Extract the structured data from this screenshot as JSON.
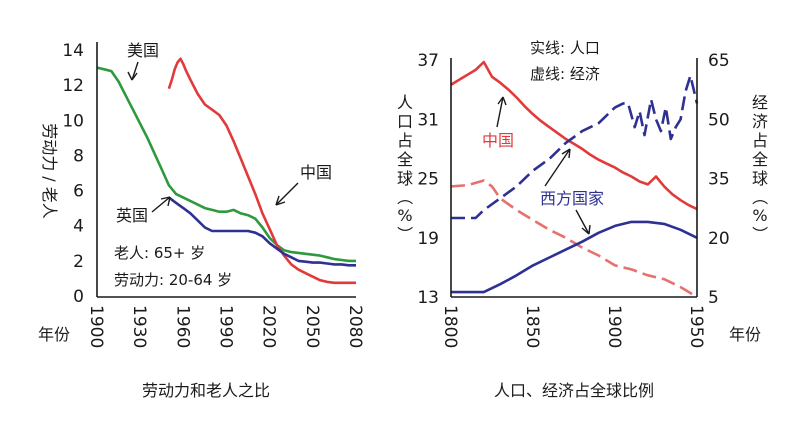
{
  "chart_data": [
    {
      "type": "line",
      "caption": "劳动力和老人之比",
      "xlabel": "年份",
      "ylabel": "劳动力 / 老人",
      "xlim": [
        1900,
        2080
      ],
      "ylim": [
        0,
        14
      ],
      "xticks": [
        "1900",
        "1930",
        "1960",
        "1990",
        "2020",
        "2050",
        "2080"
      ],
      "yticks": [
        "0",
        "2",
        "4",
        "6",
        "8",
        "10",
        "12",
        "14"
      ],
      "notes": [
        "老人: 65+ 岁",
        "劳动力: 20-64 岁"
      ],
      "series": [
        {
          "name": "美国",
          "color": "#2e9a3e",
          "x": [
            1900,
            1905,
            1910,
            1915,
            1920,
            1925,
            1930,
            1935,
            1940,
            1945,
            1950,
            1955,
            1960,
            1965,
            1970,
            1975,
            1980,
            1985,
            1990,
            1995,
            2000,
            2005,
            2010,
            2015,
            2020,
            2025,
            2030,
            2035,
            2040,
            2045,
            2050,
            2055,
            2060,
            2065,
            2070,
            2075,
            2080
          ],
          "values": [
            13.0,
            12.9,
            12.8,
            12.2,
            11.4,
            10.6,
            9.8,
            9.0,
            8.1,
            7.2,
            6.3,
            5.8,
            5.6,
            5.4,
            5.2,
            5.0,
            4.9,
            4.8,
            4.8,
            4.9,
            4.7,
            4.6,
            4.4,
            3.9,
            3.3,
            2.9,
            2.6,
            2.5,
            2.45,
            2.4,
            2.35,
            2.3,
            2.2,
            2.1,
            2.05,
            2.0,
            2.0
          ]
        },
        {
          "name": "中国",
          "color": "#e23a3a",
          "x": [
            1950,
            1952,
            1954,
            1956,
            1958,
            1960,
            1962,
            1965,
            1970,
            1975,
            1980,
            1985,
            1990,
            1995,
            2000,
            2005,
            2010,
            2015,
            2020,
            2025,
            2030,
            2035,
            2040,
            2045,
            2050,
            2055,
            2060,
            2065,
            2070,
            2075,
            2080
          ],
          "values": [
            11.8,
            12.3,
            12.9,
            13.3,
            13.5,
            13.2,
            12.8,
            12.3,
            11.5,
            10.9,
            10.6,
            10.3,
            9.7,
            8.8,
            7.8,
            6.8,
            5.8,
            4.7,
            3.8,
            2.9,
            2.3,
            1.8,
            1.5,
            1.3,
            1.1,
            0.9,
            0.8,
            0.75,
            0.75,
            0.75,
            0.75
          ]
        },
        {
          "name": "英国",
          "color": "#2e3192",
          "x": [
            1950,
            1955,
            1960,
            1965,
            1970,
            1975,
            1980,
            1985,
            1990,
            1995,
            2000,
            2005,
            2010,
            2015,
            2020,
            2025,
            2030,
            2035,
            2040,
            2045,
            2050,
            2055,
            2060,
            2065,
            2070,
            2075,
            2080
          ],
          "values": [
            5.6,
            5.3,
            5.0,
            4.7,
            4.3,
            3.9,
            3.7,
            3.7,
            3.7,
            3.7,
            3.7,
            3.7,
            3.6,
            3.4,
            3.0,
            2.7,
            2.4,
            2.2,
            2.0,
            1.95,
            1.9,
            1.9,
            1.85,
            1.8,
            1.8,
            1.75,
            1.75
          ]
        }
      ],
      "labels": {
        "usa": "美国",
        "china": "中国",
        "uk": "英国"
      }
    },
    {
      "type": "line",
      "caption": "人口、经济占全球比例",
      "xlabel": "年份",
      "ylabel_left": "人口占全球（%）",
      "ylabel_right": "经济占全球（%）",
      "xlim": [
        1800,
        1950
      ],
      "ylim_left": [
        13,
        37
      ],
      "ylim_right": [
        5,
        65
      ],
      "xticks": [
        "1800",
        "1850",
        "1900",
        "1950"
      ],
      "yticks_left": [
        "13",
        "19",
        "25",
        "31",
        "37"
      ],
      "yticks_right": [
        "5",
        "20",
        "35",
        "50",
        "65"
      ],
      "legend": [
        "实线: 人口",
        "虚线: 经济"
      ],
      "series": [
        {
          "name": "中国",
          "metric": "人口",
          "axis": "left",
          "style": "solid",
          "color": "#e23a3a",
          "x": [
            1800,
            1805,
            1810,
            1815,
            1820,
            1825,
            1830,
            1835,
            1840,
            1845,
            1850,
            1855,
            1860,
            1865,
            1870,
            1875,
            1880,
            1885,
            1890,
            1895,
            1900,
            1905,
            1910,
            1915,
            1920,
            1925,
            1930,
            1935,
            1940,
            1945,
            1950
          ],
          "values": [
            34.5,
            35.0,
            35.5,
            36.0,
            36.8,
            35.3,
            34.7,
            34.0,
            33.2,
            32.3,
            31.5,
            30.8,
            30.2,
            29.6,
            29.0,
            28.5,
            28.0,
            27.4,
            26.9,
            26.5,
            26.1,
            25.6,
            25.2,
            24.7,
            24.4,
            25.2,
            24.2,
            23.4,
            22.8,
            22.3,
            21.9
          ]
        },
        {
          "name": "中国",
          "metric": "经济",
          "axis": "right",
          "style": "dashed",
          "color": "#e8706e",
          "x": [
            1800,
            1810,
            1820,
            1825,
            1830,
            1840,
            1850,
            1860,
            1870,
            1880,
            1890,
            1900,
            1910,
            1920,
            1930,
            1940,
            1950
          ],
          "values": [
            33.0,
            33.3,
            34.5,
            33.0,
            30.0,
            27.0,
            24.5,
            22.0,
            20.0,
            17.5,
            15.5,
            13.0,
            12.0,
            10.5,
            9.5,
            7.5,
            5.0
          ]
        },
        {
          "name": "西方国家",
          "metric": "人口",
          "axis": "left",
          "style": "solid",
          "color": "#2e3192",
          "x": [
            1800,
            1810,
            1820,
            1830,
            1840,
            1850,
            1860,
            1870,
            1880,
            1890,
            1900,
            1910,
            1920,
            1930,
            1940,
            1950
          ],
          "values": [
            13.5,
            13.5,
            13.5,
            14.3,
            15.2,
            16.2,
            17.0,
            17.8,
            18.6,
            19.5,
            20.2,
            20.6,
            20.6,
            20.4,
            19.8,
            19.0
          ]
        },
        {
          "name": "西方国家",
          "metric": "经济",
          "axis": "right",
          "style": "dashed",
          "color": "#2e3192",
          "x": [
            1800,
            1805,
            1810,
            1815,
            1820,
            1830,
            1840,
            1850,
            1860,
            1870,
            1880,
            1890,
            1900,
            1905,
            1908,
            1912,
            1915,
            1918,
            1922,
            1925,
            1928,
            1931,
            1934,
            1937,
            1940,
            1943,
            1946,
            1950
          ],
          "values": [
            25.0,
            25.0,
            25.0,
            25.0,
            27.0,
            30.0,
            33.0,
            37.0,
            40.0,
            44.0,
            47.0,
            49.0,
            53.0,
            54.0,
            54.0,
            48.0,
            52.0,
            46.0,
            55.0,
            50.0,
            47.0,
            53.0,
            45.0,
            48.0,
            50.0,
            57.0,
            61.0,
            54.0
          ]
        }
      ],
      "labels": {
        "china": "中国",
        "west": "西方国家"
      }
    }
  ]
}
